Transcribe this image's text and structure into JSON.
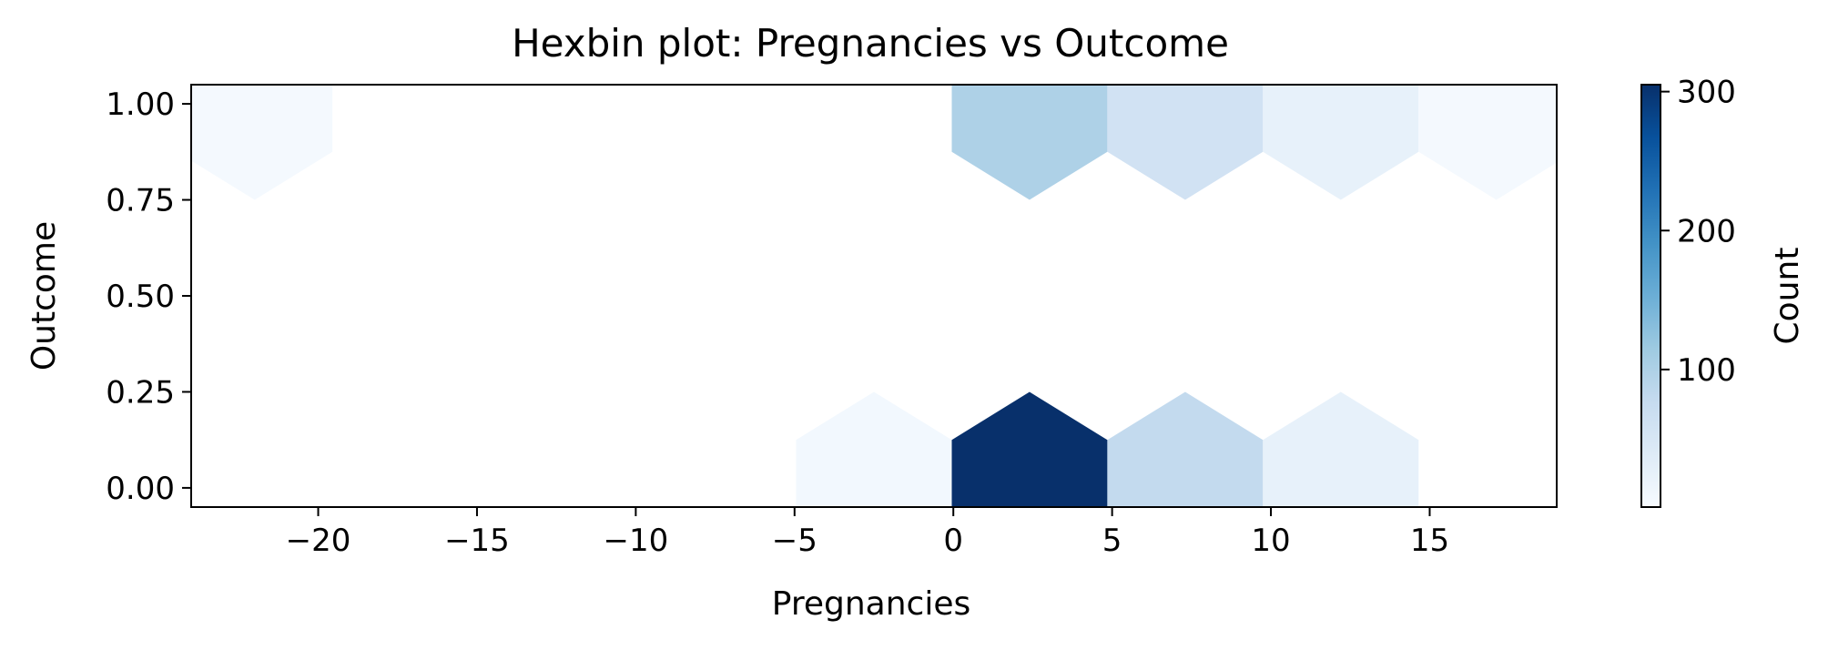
{
  "chart_data": {
    "type": "hexbin",
    "title": "Hexbin plot: Pregnancies vs Outcome",
    "xlabel": "Pregnancies",
    "ylabel": "Outcome",
    "xlim": [
      -24,
      19
    ],
    "ylim": [
      -0.05,
      1.05
    ],
    "x_ticks": [
      -20,
      -15,
      -10,
      -5,
      0,
      5,
      10,
      15
    ],
    "x_tick_labels": [
      "−20",
      "−15",
      "−10",
      "−5",
      "0",
      "5",
      "10",
      "15"
    ],
    "y_ticks": [
      0,
      0.25,
      0.5,
      0.75,
      1
    ],
    "y_tick_labels": [
      "0.00",
      "0.25",
      "0.50",
      "0.75",
      "1.00"
    ],
    "grid": false,
    "colormap": "Blues",
    "hex_width": 4.9,
    "hex_half_height": 0.25,
    "bins": [
      {
        "x": -22,
        "y": 1,
        "count": 5
      },
      {
        "x": 2.4,
        "y": 1,
        "count": 100
      },
      {
        "x": 7.3,
        "y": 1,
        "count": 60
      },
      {
        "x": 12.2,
        "y": 1,
        "count": 25
      },
      {
        "x": 17.1,
        "y": 1,
        "count": 5
      },
      {
        "x": -2.5,
        "y": 0,
        "count": 8
      },
      {
        "x": 2.4,
        "y": 0,
        "count": 305
      },
      {
        "x": 7.3,
        "y": 0,
        "count": 80
      },
      {
        "x": 12.2,
        "y": 0,
        "count": 25
      }
    ],
    "colorbar": {
      "label": "Count",
      "min": 1,
      "max": 305,
      "ticks": [
        100,
        200,
        300
      ],
      "tick_labels": [
        "100",
        "200",
        "300"
      ]
    }
  }
}
